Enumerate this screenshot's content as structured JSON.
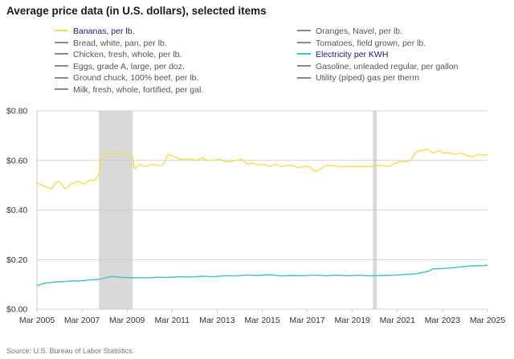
{
  "title": "Average price data (in U.S. dollars), selected items",
  "source": "Source: U.S. Bureau of Labor Statistics.",
  "legend": {
    "left": [
      {
        "label": "Bananas, per lb.",
        "color": "#f5df4d",
        "active": true
      },
      {
        "label": "Bread, white, pan, per lb.",
        "color": "#8a8a8a",
        "active": false
      },
      {
        "label": "Chicken, fresh, whole, per lb.",
        "color": "#8a8a8a",
        "active": false
      },
      {
        "label": "Eggs, grade A, large, per doz.",
        "color": "#8a8a8a",
        "active": false
      },
      {
        "label": "Ground chuck, 100% beef, per lb.",
        "color": "#8a8a8a",
        "active": false
      },
      {
        "label": "Milk, fresh, whole, fortified, per gal.",
        "color": "#8a8a8a",
        "active": false
      }
    ],
    "right": [
      {
        "label": "Oranges, Navel, per lb.",
        "color": "#8a8a8a",
        "active": false
      },
      {
        "label": "Tomatoes, field grown, per lb.",
        "color": "#8a8a8a",
        "active": false
      },
      {
        "label": "Electricity per KWH",
        "color": "#3cc3c3",
        "active": true
      },
      {
        "label": "Gasoline, unleaded regular, per gallon",
        "color": "#8a8a8a",
        "active": false
      },
      {
        "label": "Utility (piped) gas per therm",
        "color": "#8a8a8a",
        "active": false
      }
    ]
  },
  "chart_data": {
    "type": "line",
    "title": "Average price data (in U.S. dollars), selected items",
    "xlabel": "",
    "ylabel": "",
    "xlim": [
      2005.167,
      2025.167
    ],
    "ylim": [
      0,
      0.8
    ],
    "yticks": [
      0,
      0.2,
      0.4,
      0.6,
      0.8
    ],
    "ytick_labels": [
      "$0.00",
      "$0.20",
      "$0.40",
      "$0.60",
      "$0.80"
    ],
    "xticks": [
      2005.167,
      2007.167,
      2009.167,
      2011.167,
      2013.167,
      2015.167,
      2017.167,
      2019.167,
      2021.167,
      2023.167,
      2025.167
    ],
    "xtick_labels": [
      "Mar 2005",
      "Mar 2007",
      "Mar 2009",
      "Mar 2011",
      "Mar 2013",
      "Mar 2015",
      "Mar 2017",
      "Mar 2019",
      "Mar 2021",
      "Mar 2023",
      "Mar 2025"
    ],
    "grid": "horizontal",
    "recessions": [
      [
        2007.917,
        2009.417
      ],
      [
        2020.083,
        2020.25
      ]
    ],
    "recession_color": "#d9d9d9",
    "series": [
      {
        "name": "Bananas, per lb.",
        "color": "#f5df4d",
        "x": [
          2005.17,
          2005.5,
          2005.83,
          2006.0,
          2006.17,
          2006.42,
          2006.67,
          2006.83,
          2007.0,
          2007.25,
          2007.5,
          2007.75,
          2007.92,
          2008.0,
          2008.25,
          2008.42,
          2008.75,
          2009.0,
          2009.25,
          2009.42,
          2009.5,
          2009.75,
          2010.0,
          2010.25,
          2010.5,
          2010.75,
          2011.0,
          2011.25,
          2011.5,
          2011.75,
          2012.0,
          2012.25,
          2012.5,
          2012.75,
          2013.0,
          2013.25,
          2013.5,
          2013.75,
          2014.0,
          2014.25,
          2014.5,
          2014.75,
          2015.0,
          2015.25,
          2015.5,
          2015.75,
          2016.0,
          2016.25,
          2016.5,
          2016.75,
          2017.0,
          2017.25,
          2017.5,
          2017.75,
          2018.0,
          2018.25,
          2018.5,
          2018.75,
          2019.0,
          2019.25,
          2019.5,
          2019.75,
          2020.0,
          2020.25,
          2020.5,
          2020.75,
          2021.0,
          2021.25,
          2021.5,
          2021.75,
          2022.0,
          2022.25,
          2022.5,
          2022.75,
          2023.0,
          2023.25,
          2023.5,
          2023.75,
          2024.0,
          2024.25,
          2024.5,
          2024.75,
          2025.0,
          2025.17
        ],
        "values": [
          0.51,
          0.495,
          0.485,
          0.51,
          0.515,
          0.485,
          0.505,
          0.51,
          0.515,
          0.505,
          0.52,
          0.52,
          0.545,
          0.6,
          0.63,
          0.625,
          0.63,
          0.625,
          0.62,
          0.615,
          0.565,
          0.585,
          0.575,
          0.585,
          0.58,
          0.58,
          0.625,
          0.615,
          0.605,
          0.605,
          0.605,
          0.6,
          0.61,
          0.6,
          0.6,
          0.605,
          0.595,
          0.595,
          0.6,
          0.605,
          0.585,
          0.59,
          0.58,
          0.585,
          0.575,
          0.585,
          0.575,
          0.58,
          0.58,
          0.57,
          0.575,
          0.575,
          0.555,
          0.565,
          0.58,
          0.58,
          0.575,
          0.575,
          0.575,
          0.575,
          0.575,
          0.575,
          0.575,
          0.58,
          0.58,
          0.575,
          0.585,
          0.595,
          0.595,
          0.6,
          0.635,
          0.64,
          0.645,
          0.63,
          0.64,
          0.63,
          0.63,
          0.625,
          0.63,
          0.62,
          0.615,
          0.625,
          0.62,
          0.625
        ]
      },
      {
        "name": "Electricity per KWH",
        "color": "#3cc3c3",
        "x": [
          2005.17,
          2005.5,
          2005.83,
          2006.0,
          2006.5,
          2006.83,
          2007.0,
          2007.5,
          2007.92,
          2008.25,
          2008.5,
          2008.75,
          2009.0,
          2009.5,
          2010.0,
          2010.5,
          2011.0,
          2011.5,
          2012.0,
          2012.5,
          2013.0,
          2013.5,
          2014.0,
          2014.5,
          2015.0,
          2015.5,
          2016.0,
          2016.5,
          2017.0,
          2017.5,
          2018.0,
          2018.5,
          2019.0,
          2019.5,
          2020.0,
          2020.5,
          2021.0,
          2021.5,
          2022.0,
          2022.5,
          2022.75,
          2023.0,
          2023.5,
          2024.0,
          2024.5,
          2025.0,
          2025.17
        ],
        "values": [
          0.095,
          0.105,
          0.108,
          0.11,
          0.112,
          0.115,
          0.113,
          0.118,
          0.12,
          0.128,
          0.132,
          0.13,
          0.128,
          0.127,
          0.126,
          0.129,
          0.128,
          0.131,
          0.13,
          0.133,
          0.131,
          0.135,
          0.134,
          0.138,
          0.136,
          0.139,
          0.134,
          0.136,
          0.135,
          0.138,
          0.135,
          0.137,
          0.135,
          0.137,
          0.134,
          0.136,
          0.137,
          0.14,
          0.143,
          0.152,
          0.163,
          0.163,
          0.166,
          0.171,
          0.175,
          0.176,
          0.178
        ]
      }
    ]
  }
}
